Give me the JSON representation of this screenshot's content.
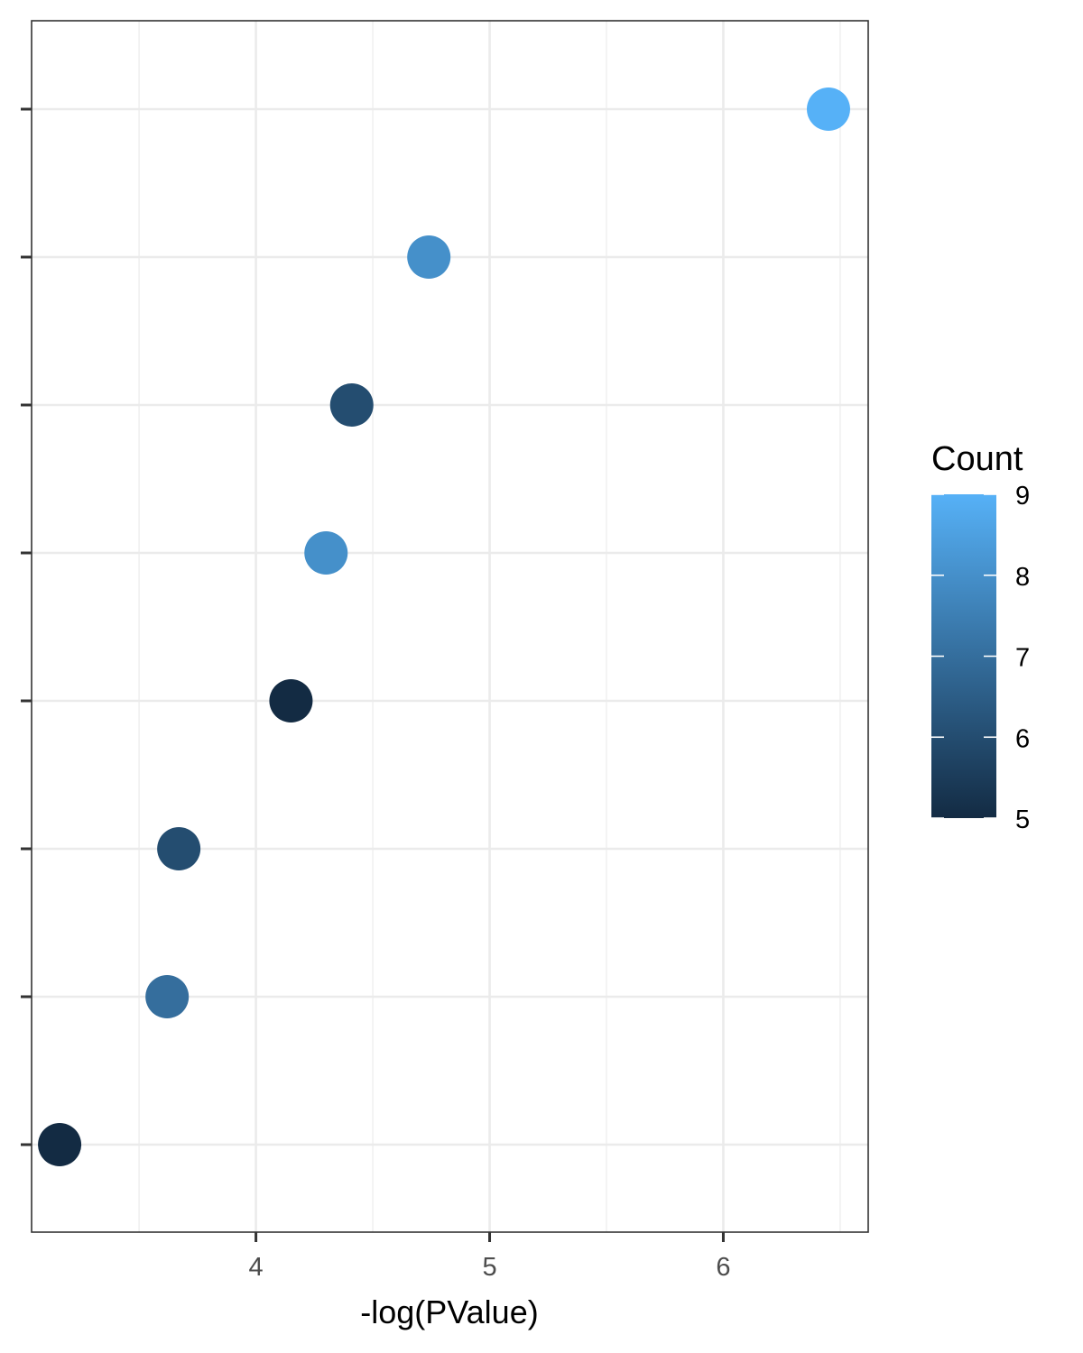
{
  "chart_data": {
    "type": "scatter",
    "title": "",
    "xlabel": "-log(PValue)",
    "ylabel": "",
    "xlim": [
      3.04,
      6.62
    ],
    "x_ticks": [
      4,
      5,
      6
    ],
    "x_tick_labels": [
      "4",
      "5",
      "6"
    ],
    "y_categories_count": 8,
    "grid": true,
    "points": [
      {
        "x": 6.45,
        "count": 9
      },
      {
        "x": 4.74,
        "count": 8
      },
      {
        "x": 4.41,
        "count": 6
      },
      {
        "x": 4.3,
        "count": 8
      },
      {
        "x": 4.15,
        "count": 5
      },
      {
        "x": 3.67,
        "count": 6
      },
      {
        "x": 3.62,
        "count": 7
      },
      {
        "x": 3.16,
        "count": 5
      }
    ],
    "color_legend": {
      "title": "Count",
      "min": 5,
      "max": 9,
      "ticks": [
        5,
        6,
        7,
        8,
        9
      ],
      "tick_labels": [
        "5",
        "6",
        "7",
        "8",
        "9"
      ],
      "low_color": "#132b43",
      "high_color": "#56b1f7",
      "placement": "right"
    }
  }
}
